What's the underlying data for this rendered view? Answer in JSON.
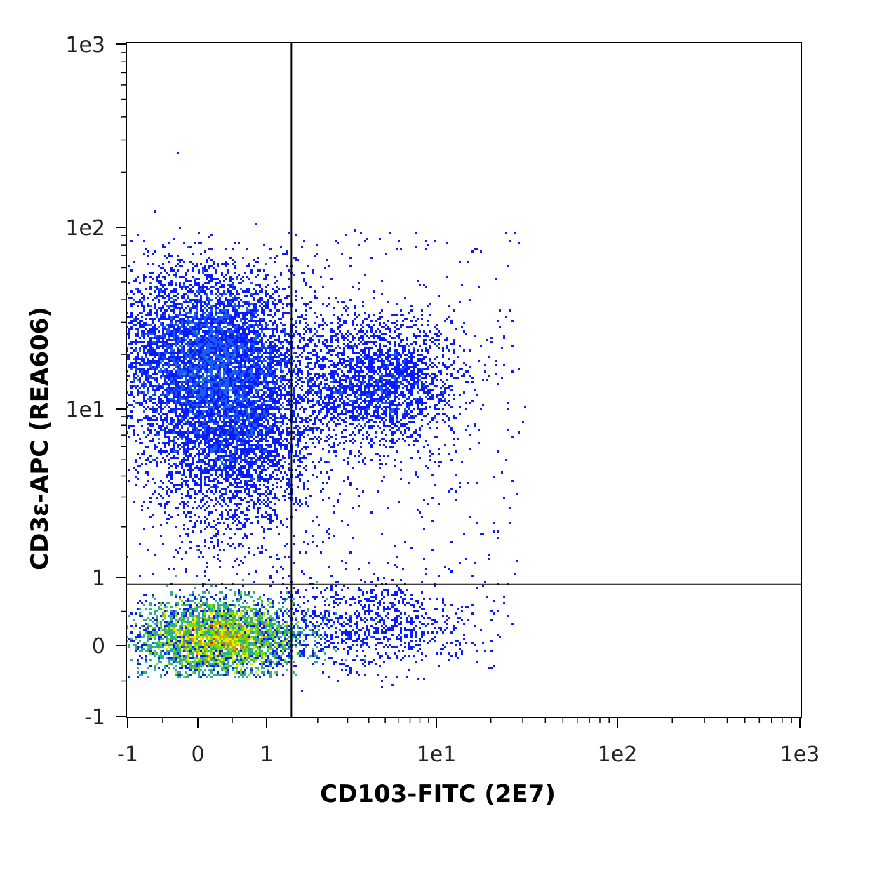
{
  "chart_data": {
    "type": "scatter",
    "subtype": "flow-cytometry-density-dot-plot",
    "xlabel": "CD103-FITC (2E7)",
    "ylabel": "CD3ε-APC (REA606)",
    "x_scale": "biexponential",
    "y_scale": "biexponential",
    "xlim": [
      -1,
      1000
    ],
    "ylim": [
      -1,
      1000
    ],
    "x_ticks": [
      {
        "value": -1,
        "label": "-1"
      },
      {
        "value": 0,
        "label": "0"
      },
      {
        "value": 1,
        "label": "1"
      },
      {
        "value": 10,
        "label": "1e1"
      },
      {
        "value": 100,
        "label": "1e2"
      },
      {
        "value": 1000,
        "label": "1e3"
      }
    ],
    "y_ticks": [
      {
        "value": -1,
        "label": "-1"
      },
      {
        "value": 0,
        "label": "0"
      },
      {
        "value": 1,
        "label": "1"
      },
      {
        "value": 10,
        "label": "1e1"
      },
      {
        "value": 100,
        "label": "1e2"
      },
      {
        "value": 1000,
        "label": "1e3"
      }
    ],
    "quadrant_gate": {
      "x": 1.4,
      "y": 0.9
    },
    "density_colormap": [
      "#0a1cff",
      "#1a5cf0",
      "#2bb08a",
      "#77e000",
      "#f2e800",
      "#ff8a00",
      "#ff2000"
    ],
    "populations": [
      {
        "x_center": 0.3,
        "y_center": 0.12,
        "density": "very high"
      },
      {
        "x_center": 0.1,
        "y_center": 20,
        "density": "medium"
      },
      {
        "x_center": 0.5,
        "y_center": 8,
        "density": "medium"
      },
      {
        "x_center": 4.5,
        "y_center": 14,
        "density": "low"
      },
      {
        "x_center": 4.0,
        "y_center": 0.3,
        "density": "low"
      }
    ],
    "grid": false,
    "legend": "none"
  }
}
